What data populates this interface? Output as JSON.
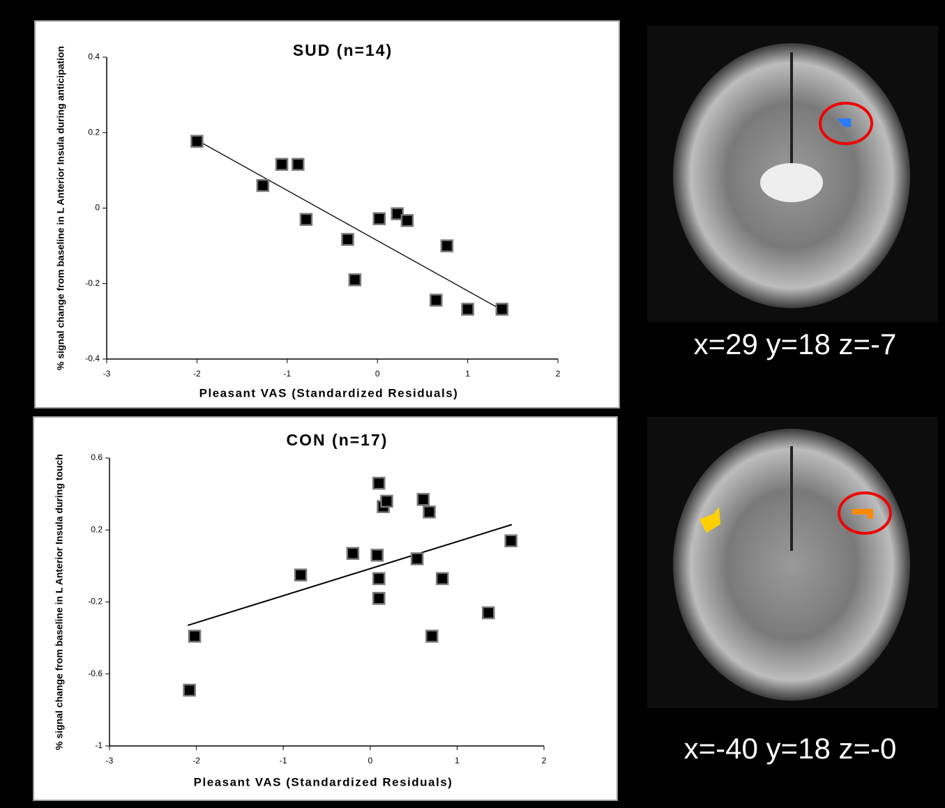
{
  "chart_data": [
    {
      "type": "scatter",
      "title": "SUD (n=14)",
      "x_label": "Pleasant VAS (Standardized Residuals)",
      "y_label": "% signal change from baseline in L Anterior Insula during anticipation",
      "color": "#000000",
      "x": [
        -2.0,
        -1.27,
        -1.06,
        -0.88,
        -0.79,
        -0.33,
        -0.25,
        0.02,
        0.22,
        0.33,
        0.77,
        0.65,
        1.0,
        1.38
      ],
      "values": [
        0.177,
        0.06,
        0.116,
        0.116,
        -0.03,
        -0.083,
        -0.19,
        -0.028,
        -0.015,
        -0.033,
        -0.1,
        -0.244,
        -0.268,
        -0.268
      ],
      "fit_line": {
        "x": [
          -2.0,
          1.38
        ],
        "y": [
          0.18,
          -0.27
        ]
      },
      "xlim": [
        -3,
        2
      ],
      "ylim": [
        -0.4,
        0.4
      ],
      "xticks": [
        -3,
        -2,
        -1,
        0,
        1,
        2
      ],
      "yticks": [
        -0.4,
        -0.2,
        0,
        0.2,
        0.4
      ]
    },
    {
      "type": "scatter",
      "title": "CON (n=17)",
      "x_label": "Pleasant VAS (Standardized Residuals)",
      "y_label": "% signal change from baseline in L Anterior Insula during touch",
      "color": "#000000",
      "x": [
        -2.02,
        -2.08,
        -0.8,
        -0.2,
        0.1,
        0.15,
        0.19,
        0.08,
        0.1,
        0.1,
        0.61,
        0.68,
        0.54,
        0.83,
        0.71,
        1.36,
        1.62
      ],
      "values": [
        -0.39,
        -0.69,
        -0.05,
        0.07,
        0.46,
        0.33,
        0.36,
        0.06,
        -0.07,
        -0.18,
        0.37,
        0.3,
        0.04,
        -0.07,
        -0.39,
        -0.26,
        0.14
      ],
      "fit_line": {
        "x": [
          -2.1,
          1.63
        ],
        "y": [
          -0.33,
          0.23
        ]
      },
      "xlim": [
        -3,
        2
      ],
      "ylim": [
        -1,
        0.6
      ],
      "xticks": [
        -3,
        -2,
        -1,
        0,
        1,
        2
      ],
      "yticks": [
        -1,
        -0.6,
        -0.2,
        0.2,
        0.6
      ]
    }
  ],
  "images": [
    {
      "caption": "x=29  y=18  z=-7"
    },
    {
      "caption": "x=-40  y=18  z=-0"
    }
  ]
}
